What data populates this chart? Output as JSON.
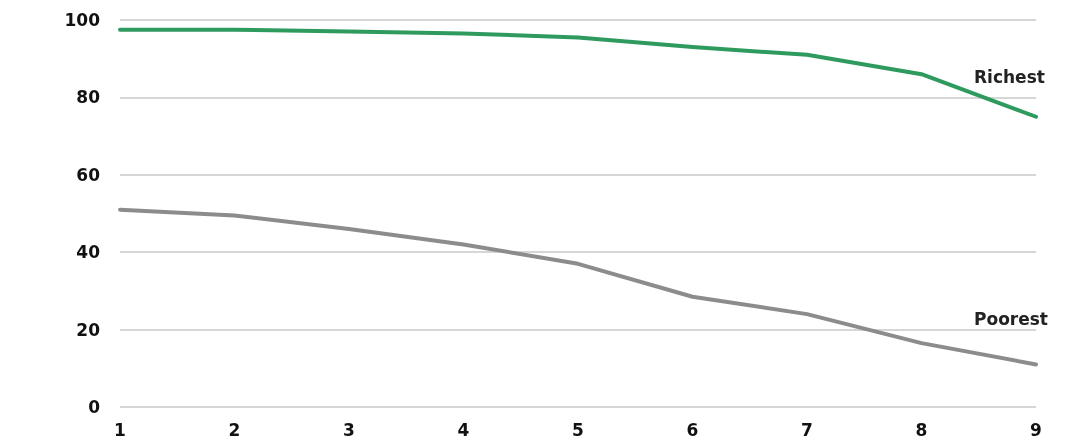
{
  "chart_data": {
    "type": "line",
    "categories": [
      "1",
      "2",
      "3",
      "4",
      "5",
      "6",
      "7",
      "8",
      "9"
    ],
    "series": [
      {
        "name": "Richest",
        "color": "#2e9a5e",
        "values": [
          97.5,
          97.5,
          97,
          96.5,
          95.5,
          93,
          91,
          86,
          75
        ]
      },
      {
        "name": "Poorest",
        "color": "#8c8c8c",
        "values": [
          51,
          49.5,
          46,
          42,
          37,
          28.5,
          24,
          16.5,
          11
        ]
      }
    ],
    "ylim": [
      0,
      100
    ],
    "yticks": [
      0,
      20,
      40,
      60,
      80,
      100
    ],
    "grid": "y",
    "legend": false,
    "marker": "none",
    "line_style": "solid"
  }
}
